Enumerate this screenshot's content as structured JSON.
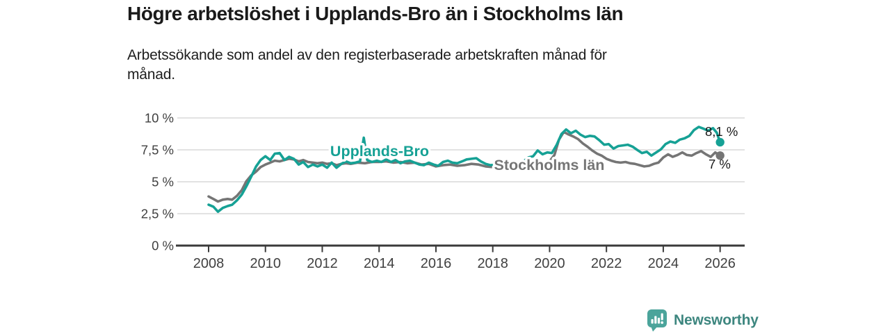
{
  "header": {
    "title": "Högre arbetslöshet i Upplands-Bro än i Stockholms län",
    "subtitle_line1": "Arbetssökande som andel av den registerbaserade arbetskraften månad för",
    "subtitle_line2": "månad."
  },
  "brand": {
    "name": "Newsworthy"
  },
  "colors": {
    "teal": "#16a195",
    "gray": "#757575",
    "axis": "#3a3a3a",
    "axis_text": "#404040",
    "grid": "#d9d9d9",
    "annotation_text": "#1a1a1a",
    "brand_text": "#3d867f",
    "brand_icon_bg": "#4ba49b"
  },
  "chart_data": {
    "type": "line",
    "title": "Högre arbetslöshet i Upplands-Bro än i Stockholms län",
    "subtitle": "Arbetssökande som andel av den registerbaserade arbetskraften månad för månad.",
    "grid": true,
    "legend": "inline-labels",
    "x_axis": {
      "ticks": [
        2008,
        2010,
        2012,
        2014,
        2016,
        2018,
        2020,
        2022,
        2024,
        2026
      ]
    },
    "y_axis": {
      "range": [
        0,
        10
      ],
      "ticks": [
        0,
        2.5,
        5,
        7.5,
        10
      ],
      "tick_labels": [
        "0 %",
        "2,5 %",
        "5 %",
        "7,5 %",
        "10 %"
      ]
    },
    "series": [
      {
        "name": "Upplands-Bro",
        "color": "#16a195",
        "end_label": "8,1 %",
        "end_value": 8.1,
        "points": [
          [
            2008.0,
            3.2
          ],
          [
            2008.17,
            3.05
          ],
          [
            2008.33,
            2.65
          ],
          [
            2008.5,
            2.95
          ],
          [
            2008.67,
            3.1
          ],
          [
            2008.83,
            3.2
          ],
          [
            2009.0,
            3.55
          ],
          [
            2009.17,
            4.0
          ],
          [
            2009.33,
            4.65
          ],
          [
            2009.5,
            5.4
          ],
          [
            2009.67,
            6.2
          ],
          [
            2009.83,
            6.7
          ],
          [
            2010.0,
            7.0
          ],
          [
            2010.17,
            6.7
          ],
          [
            2010.33,
            7.2
          ],
          [
            2010.5,
            7.25
          ],
          [
            2010.67,
            6.7
          ],
          [
            2010.83,
            6.95
          ],
          [
            2011.0,
            6.8
          ],
          [
            2011.17,
            6.35
          ],
          [
            2011.33,
            6.55
          ],
          [
            2011.5,
            6.15
          ],
          [
            2011.67,
            6.35
          ],
          [
            2011.83,
            6.2
          ],
          [
            2012.0,
            6.35
          ],
          [
            2012.17,
            6.1
          ],
          [
            2012.33,
            6.5
          ],
          [
            2012.5,
            6.1
          ],
          [
            2012.67,
            6.4
          ],
          [
            2012.83,
            6.6
          ],
          [
            2013.0,
            6.45
          ],
          [
            2013.17,
            6.5
          ],
          [
            2013.33,
            6.6
          ],
          [
            2013.46,
            8.45
          ],
          [
            2013.58,
            6.7
          ],
          [
            2013.75,
            6.55
          ],
          [
            2013.92,
            6.65
          ],
          [
            2014.08,
            6.55
          ],
          [
            2014.25,
            6.75
          ],
          [
            2014.42,
            6.55
          ],
          [
            2014.58,
            6.7
          ],
          [
            2014.75,
            6.45
          ],
          [
            2014.92,
            6.6
          ],
          [
            2015.08,
            6.65
          ],
          [
            2015.25,
            6.5
          ],
          [
            2015.42,
            6.35
          ],
          [
            2015.58,
            6.3
          ],
          [
            2015.75,
            6.5
          ],
          [
            2015.92,
            6.35
          ],
          [
            2016.08,
            6.25
          ],
          [
            2016.25,
            6.55
          ],
          [
            2016.42,
            6.65
          ],
          [
            2016.58,
            6.5
          ],
          [
            2016.75,
            6.45
          ],
          [
            2016.92,
            6.6
          ],
          [
            2017.08,
            6.75
          ],
          [
            2017.25,
            6.8
          ],
          [
            2017.42,
            6.85
          ],
          [
            2017.58,
            6.6
          ],
          [
            2017.75,
            6.4
          ],
          [
            2017.92,
            6.3
          ],
          [
            2018.08,
            6.35
          ],
          [
            2018.25,
            6.25
          ],
          [
            2018.42,
            6.2
          ],
          [
            2018.58,
            6.25
          ],
          [
            2018.75,
            6.3
          ],
          [
            2018.92,
            6.45
          ],
          [
            2019.08,
            6.6
          ],
          [
            2019.25,
            6.9
          ],
          [
            2019.42,
            7.0
          ],
          [
            2019.58,
            7.45
          ],
          [
            2019.75,
            7.15
          ],
          [
            2019.92,
            7.3
          ],
          [
            2020.08,
            7.25
          ],
          [
            2020.25,
            7.9
          ],
          [
            2020.42,
            8.75
          ],
          [
            2020.58,
            9.1
          ],
          [
            2020.75,
            8.8
          ],
          [
            2020.92,
            9.0
          ],
          [
            2021.08,
            8.7
          ],
          [
            2021.25,
            8.5
          ],
          [
            2021.42,
            8.6
          ],
          [
            2021.58,
            8.55
          ],
          [
            2021.75,
            8.25
          ],
          [
            2021.92,
            7.9
          ],
          [
            2022.08,
            7.95
          ],
          [
            2022.25,
            7.6
          ],
          [
            2022.42,
            7.8
          ],
          [
            2022.58,
            7.85
          ],
          [
            2022.75,
            7.9
          ],
          [
            2022.92,
            7.75
          ],
          [
            2023.08,
            7.5
          ],
          [
            2023.25,
            7.25
          ],
          [
            2023.42,
            7.35
          ],
          [
            2023.58,
            7.05
          ],
          [
            2023.75,
            7.3
          ],
          [
            2023.92,
            7.55
          ],
          [
            2024.08,
            7.95
          ],
          [
            2024.25,
            8.15
          ],
          [
            2024.42,
            8.05
          ],
          [
            2024.58,
            8.3
          ],
          [
            2024.75,
            8.4
          ],
          [
            2024.92,
            8.6
          ],
          [
            2025.08,
            9.05
          ],
          [
            2025.25,
            9.3
          ],
          [
            2025.42,
            9.15
          ],
          [
            2025.58,
            9.0
          ],
          [
            2025.75,
            9.2
          ],
          [
            2025.88,
            8.85
          ],
          [
            2026.0,
            8.1
          ]
        ]
      },
      {
        "name": "Stockholms län",
        "color": "#757575",
        "end_label": "7 %",
        "end_value": 7.0,
        "points": [
          [
            2008.0,
            3.85
          ],
          [
            2008.17,
            3.65
          ],
          [
            2008.33,
            3.45
          ],
          [
            2008.5,
            3.6
          ],
          [
            2008.67,
            3.65
          ],
          [
            2008.83,
            3.6
          ],
          [
            2009.0,
            3.9
          ],
          [
            2009.17,
            4.35
          ],
          [
            2009.33,
            5.05
          ],
          [
            2009.5,
            5.5
          ],
          [
            2009.67,
            5.8
          ],
          [
            2009.83,
            6.15
          ],
          [
            2010.0,
            6.35
          ],
          [
            2010.17,
            6.5
          ],
          [
            2010.33,
            6.65
          ],
          [
            2010.5,
            6.6
          ],
          [
            2010.67,
            6.7
          ],
          [
            2010.83,
            6.8
          ],
          [
            2011.0,
            6.75
          ],
          [
            2011.17,
            6.6
          ],
          [
            2011.33,
            6.7
          ],
          [
            2011.5,
            6.55
          ],
          [
            2011.67,
            6.5
          ],
          [
            2011.83,
            6.45
          ],
          [
            2012.0,
            6.5
          ],
          [
            2012.17,
            6.4
          ],
          [
            2012.33,
            6.45
          ],
          [
            2012.5,
            6.3
          ],
          [
            2012.67,
            6.4
          ],
          [
            2012.83,
            6.45
          ],
          [
            2013.0,
            6.4
          ],
          [
            2013.25,
            6.5
          ],
          [
            2013.5,
            6.45
          ],
          [
            2013.75,
            6.55
          ],
          [
            2014.0,
            6.55
          ],
          [
            2014.25,
            6.6
          ],
          [
            2014.5,
            6.5
          ],
          [
            2014.75,
            6.55
          ],
          [
            2015.0,
            6.45
          ],
          [
            2015.25,
            6.5
          ],
          [
            2015.5,
            6.35
          ],
          [
            2015.75,
            6.4
          ],
          [
            2016.0,
            6.2
          ],
          [
            2016.25,
            6.3
          ],
          [
            2016.5,
            6.35
          ],
          [
            2016.75,
            6.25
          ],
          [
            2017.0,
            6.3
          ],
          [
            2017.25,
            6.4
          ],
          [
            2017.5,
            6.35
          ],
          [
            2017.75,
            6.2
          ],
          [
            2018.0,
            6.15
          ],
          [
            2018.25,
            6.1
          ],
          [
            2018.5,
            6.15
          ],
          [
            2018.75,
            6.2
          ],
          [
            2019.0,
            6.25
          ],
          [
            2019.25,
            6.3
          ],
          [
            2019.5,
            6.4
          ],
          [
            2019.75,
            6.45
          ],
          [
            2020.0,
            6.6
          ],
          [
            2020.17,
            7.1
          ],
          [
            2020.33,
            8.3
          ],
          [
            2020.5,
            8.9
          ],
          [
            2020.67,
            8.7
          ],
          [
            2020.83,
            8.55
          ],
          [
            2021.0,
            8.35
          ],
          [
            2021.17,
            8.0
          ],
          [
            2021.33,
            7.75
          ],
          [
            2021.5,
            7.45
          ],
          [
            2021.67,
            7.2
          ],
          [
            2021.83,
            7.05
          ],
          [
            2022.0,
            6.8
          ],
          [
            2022.17,
            6.65
          ],
          [
            2022.33,
            6.55
          ],
          [
            2022.5,
            6.5
          ],
          [
            2022.67,
            6.55
          ],
          [
            2022.83,
            6.45
          ],
          [
            2023.0,
            6.4
          ],
          [
            2023.17,
            6.3
          ],
          [
            2023.33,
            6.2
          ],
          [
            2023.5,
            6.25
          ],
          [
            2023.67,
            6.4
          ],
          [
            2023.83,
            6.5
          ],
          [
            2024.0,
            6.9
          ],
          [
            2024.17,
            7.15
          ],
          [
            2024.33,
            6.95
          ],
          [
            2024.5,
            7.1
          ],
          [
            2024.67,
            7.3
          ],
          [
            2024.83,
            7.1
          ],
          [
            2025.0,
            7.05
          ],
          [
            2025.17,
            7.25
          ],
          [
            2025.33,
            7.4
          ],
          [
            2025.5,
            7.15
          ],
          [
            2025.67,
            6.95
          ],
          [
            2025.83,
            7.3
          ],
          [
            2026.0,
            7.05
          ]
        ]
      }
    ]
  }
}
